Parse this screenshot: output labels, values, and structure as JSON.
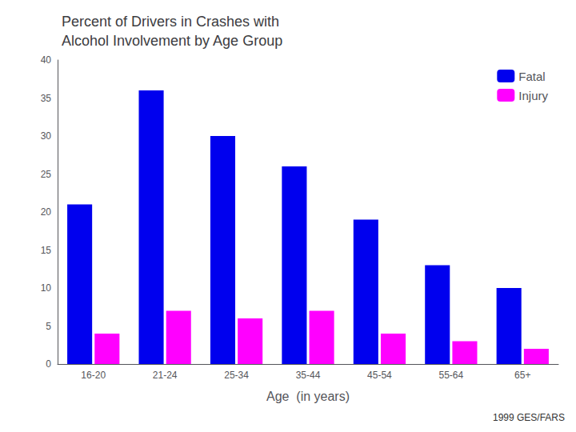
{
  "chart_data": {
    "type": "bar",
    "title": "Percent of Drivers in Crashes with\nAlcohol Involvement by Age Group",
    "xlabel": "Age  (in years)",
    "categories": [
      "16-20",
      "21-24",
      "25-34",
      "35-44",
      "45-54",
      "55-64",
      "65+"
    ],
    "series": [
      {
        "name": "Fatal",
        "color": "#0000EE",
        "values": [
          21,
          36,
          30,
          26,
          19,
          13,
          10
        ]
      },
      {
        "name": "Injury",
        "color": "#FF00FF",
        "values": [
          4,
          7,
          6,
          7,
          4,
          3,
          2
        ]
      }
    ],
    "ylim": [
      0,
      40
    ],
    "yticks": [
      0,
      5,
      10,
      15,
      20,
      25,
      30,
      35,
      40
    ],
    "grid": false,
    "legend": "upper right",
    "annotation": "1999 GES/FARS"
  }
}
